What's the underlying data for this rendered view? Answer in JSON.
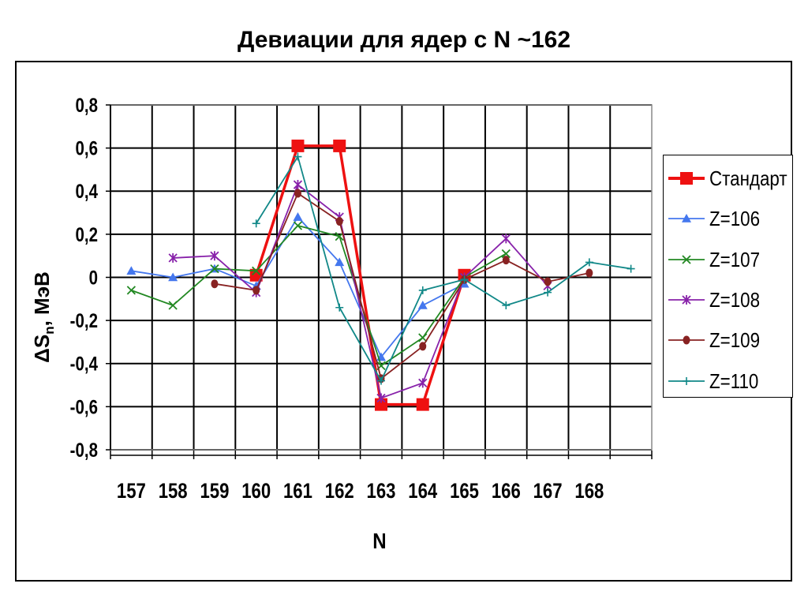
{
  "chart_data": {
    "type": "line",
    "title": "Девиации для ядер с N ~162",
    "xlabel": "N",
    "ylabel_main": "ΔS",
    "ylabel_sub": "n",
    "ylabel_rest": ", МэВ",
    "categories": [
      "157",
      "158",
      "159",
      "160",
      "161",
      "162",
      "163",
      "164",
      "165",
      "166",
      "167",
      "168"
    ],
    "ylim": [
      -0.8,
      0.8
    ],
    "yticks": [
      "0,8",
      "0,6",
      "0,4",
      "0,2",
      "0",
      "-0,2",
      "-0,4",
      "-0,6",
      "-0,8"
    ],
    "grid": true,
    "legend_position": "right",
    "series": [
      {
        "name": "Стандарт",
        "color": "#ee1111",
        "marker": "square",
        "x": [
          160,
          161,
          162,
          163,
          164,
          165
        ],
        "y": [
          0.01,
          0.61,
          0.61,
          -0.59,
          -0.59,
          0.01
        ]
      },
      {
        "name": "Z=106",
        "color": "#4477ee",
        "marker": "triangle",
        "x": [
          157,
          158,
          159,
          160,
          161,
          162,
          163,
          164,
          165
        ],
        "y": [
          0.03,
          0.0,
          0.04,
          -0.04,
          0.28,
          0.07,
          -0.37,
          -0.13,
          -0.03
        ]
      },
      {
        "name": "Z=107",
        "color": "#228822",
        "marker": "x",
        "x": [
          157,
          158,
          159,
          160,
          161,
          162,
          163,
          164,
          165,
          166
        ],
        "y": [
          -0.06,
          -0.13,
          0.04,
          0.03,
          0.24,
          0.19,
          -0.41,
          -0.28,
          0.0,
          0.11
        ]
      },
      {
        "name": "Z=108",
        "color": "#8822aa",
        "marker": "star",
        "x": [
          158,
          159,
          160,
          161,
          162,
          163,
          164,
          165,
          166,
          167
        ],
        "y": [
          0.09,
          0.1,
          -0.07,
          0.43,
          0.28,
          -0.56,
          -0.49,
          0.0,
          0.18,
          -0.04
        ]
      },
      {
        "name": "Z=109",
        "color": "#882222",
        "marker": "circle",
        "x": [
          159,
          160,
          161,
          162,
          163,
          164,
          165,
          166,
          167,
          168
        ],
        "y": [
          -0.03,
          -0.06,
          0.39,
          0.26,
          -0.47,
          -0.32,
          -0.01,
          0.08,
          -0.02,
          0.02
        ]
      },
      {
        "name": "Z=110",
        "color": "#118888",
        "marker": "plus",
        "x": [
          160,
          161,
          162,
          163,
          164,
          165,
          166,
          167,
          168,
          169
        ],
        "y": [
          0.25,
          0.56,
          -0.14,
          -0.48,
          -0.06,
          -0.01,
          -0.13,
          -0.07,
          0.07,
          0.04
        ]
      }
    ]
  }
}
